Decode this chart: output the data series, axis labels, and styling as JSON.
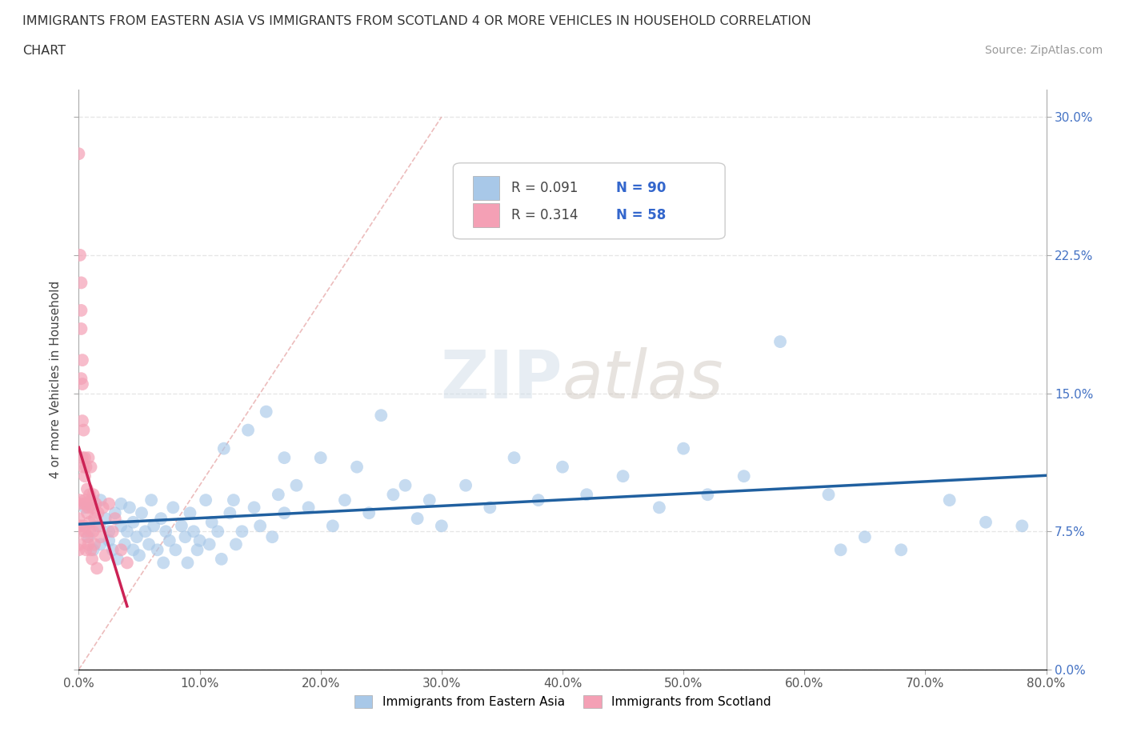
{
  "title_line1": "IMMIGRANTS FROM EASTERN ASIA VS IMMIGRANTS FROM SCOTLAND 4 OR MORE VEHICLES IN HOUSEHOLD CORRELATION",
  "title_line2": "CHART",
  "source": "Source: ZipAtlas.com",
  "ylabel": "4 or more Vehicles in Household",
  "xlim": [
    0,
    0.8
  ],
  "ylim": [
    0.0,
    0.315
  ],
  "xticks": [
    0.0,
    0.1,
    0.2,
    0.3,
    0.4,
    0.5,
    0.6,
    0.7,
    0.8
  ],
  "xticklabels": [
    "0.0%",
    "10.0%",
    "20.0%",
    "30.0%",
    "40.0%",
    "50.0%",
    "60.0%",
    "70.0%",
    "80.0%"
  ],
  "yticks": [
    0.0,
    0.075,
    0.15,
    0.225,
    0.3
  ],
  "yticklabels": [
    "0.0%",
    "7.5%",
    "15.0%",
    "22.5%",
    "30.0%"
  ],
  "blue_color": "#a8c8e8",
  "pink_color": "#f4a0b5",
  "blue_line_color": "#2060a0",
  "pink_line_color": "#cc2255",
  "watermark": "ZIPatlas",
  "legend_label_blue": "Immigrants from Eastern Asia",
  "legend_label_pink": "Immigrants from Scotland",
  "blue_scatter_x": [
    0.005,
    0.008,
    0.012,
    0.015,
    0.018,
    0.018,
    0.022,
    0.025,
    0.025,
    0.028,
    0.03,
    0.032,
    0.035,
    0.035,
    0.038,
    0.04,
    0.042,
    0.045,
    0.045,
    0.048,
    0.05,
    0.052,
    0.055,
    0.058,
    0.06,
    0.062,
    0.065,
    0.068,
    0.07,
    0.072,
    0.075,
    0.078,
    0.08,
    0.085,
    0.088,
    0.09,
    0.092,
    0.095,
    0.098,
    0.1,
    0.105,
    0.108,
    0.11,
    0.115,
    0.118,
    0.12,
    0.125,
    0.128,
    0.13,
    0.135,
    0.14,
    0.145,
    0.15,
    0.155,
    0.16,
    0.165,
    0.17,
    0.18,
    0.19,
    0.2,
    0.21,
    0.22,
    0.23,
    0.24,
    0.25,
    0.26,
    0.27,
    0.28,
    0.29,
    0.3,
    0.32,
    0.34,
    0.36,
    0.38,
    0.4,
    0.42,
    0.45,
    0.48,
    0.5,
    0.52,
    0.55,
    0.58,
    0.62,
    0.65,
    0.68,
    0.72,
    0.75,
    0.78,
    0.63,
    0.17
  ],
  "blue_scatter_y": [
    0.088,
    0.072,
    0.065,
    0.078,
    0.092,
    0.068,
    0.082,
    0.075,
    0.07,
    0.065,
    0.085,
    0.06,
    0.078,
    0.09,
    0.068,
    0.075,
    0.088,
    0.065,
    0.08,
    0.072,
    0.062,
    0.085,
    0.075,
    0.068,
    0.092,
    0.078,
    0.065,
    0.082,
    0.058,
    0.075,
    0.07,
    0.088,
    0.065,
    0.078,
    0.072,
    0.058,
    0.085,
    0.075,
    0.065,
    0.07,
    0.092,
    0.068,
    0.08,
    0.075,
    0.06,
    0.12,
    0.085,
    0.092,
    0.068,
    0.075,
    0.13,
    0.088,
    0.078,
    0.14,
    0.072,
    0.095,
    0.085,
    0.1,
    0.088,
    0.115,
    0.078,
    0.092,
    0.11,
    0.085,
    0.138,
    0.095,
    0.1,
    0.082,
    0.092,
    0.078,
    0.1,
    0.088,
    0.115,
    0.092,
    0.11,
    0.095,
    0.105,
    0.088,
    0.12,
    0.095,
    0.105,
    0.178,
    0.095,
    0.072,
    0.065,
    0.092,
    0.08,
    0.078,
    0.065,
    0.115
  ],
  "pink_scatter_x": [
    0.0,
    0.0,
    0.0,
    0.0,
    0.0,
    0.001,
    0.001,
    0.001,
    0.001,
    0.002,
    0.002,
    0.002,
    0.002,
    0.003,
    0.003,
    0.003,
    0.003,
    0.004,
    0.004,
    0.004,
    0.004,
    0.005,
    0.005,
    0.005,
    0.005,
    0.006,
    0.006,
    0.006,
    0.007,
    0.007,
    0.007,
    0.008,
    0.008,
    0.008,
    0.009,
    0.009,
    0.009,
    0.01,
    0.01,
    0.01,
    0.011,
    0.011,
    0.012,
    0.012,
    0.013,
    0.013,
    0.014,
    0.015,
    0.016,
    0.017,
    0.018,
    0.02,
    0.022,
    0.025,
    0.028,
    0.03,
    0.035,
    0.04
  ],
  "pink_scatter_y": [
    0.075,
    0.082,
    0.065,
    0.09,
    0.28,
    0.092,
    0.068,
    0.078,
    0.225,
    0.158,
    0.21,
    0.185,
    0.195,
    0.135,
    0.155,
    0.115,
    0.168,
    0.11,
    0.09,
    0.13,
    0.078,
    0.092,
    0.115,
    0.105,
    0.075,
    0.09,
    0.11,
    0.065,
    0.085,
    0.098,
    0.072,
    0.115,
    0.088,
    0.068,
    0.095,
    0.075,
    0.08,
    0.092,
    0.065,
    0.11,
    0.088,
    0.06,
    0.095,
    0.075,
    0.082,
    0.068,
    0.09,
    0.055,
    0.085,
    0.078,
    0.072,
    0.088,
    0.062,
    0.09,
    0.075,
    0.082,
    0.065,
    0.058
  ],
  "background_color": "#ffffff",
  "grid_color": "#e0e0e0"
}
